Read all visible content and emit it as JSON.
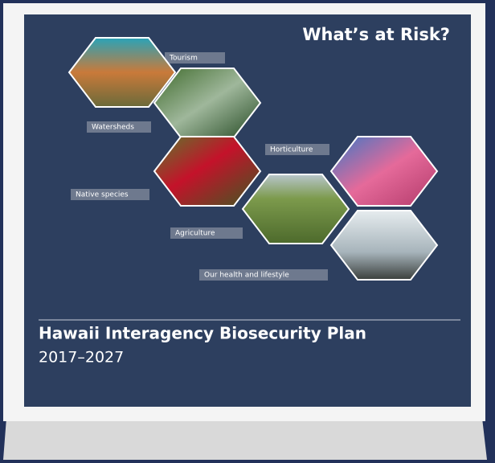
{
  "cover": {
    "heading": "What’s at Risk?",
    "hexagons": [
      {
        "label": "Tourism"
      },
      {
        "label": "Watersheds"
      },
      {
        "label": "Horticulture"
      },
      {
        "label": "Native species"
      },
      {
        "label": "Agriculture"
      },
      {
        "label": "Our health and lifestyle"
      }
    ],
    "title": "Hawaii Interagency Biosecurity Plan",
    "years": "2017–2027"
  }
}
